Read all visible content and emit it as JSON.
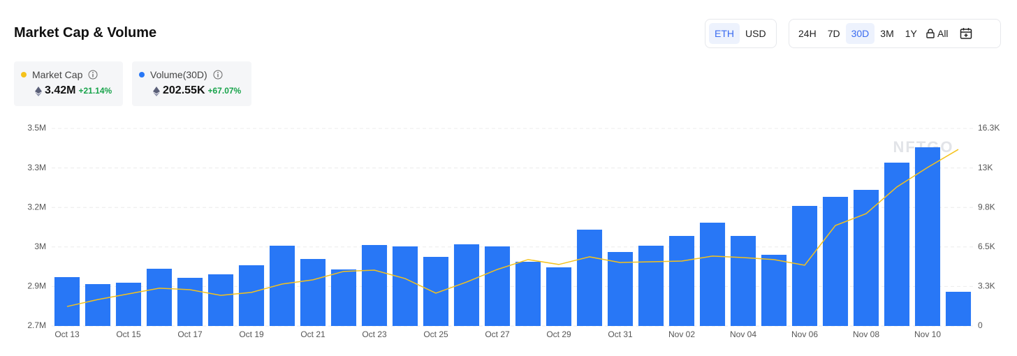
{
  "title": "Market Cap & Volume",
  "currency_options": [
    "ETH",
    "USD"
  ],
  "range_options": [
    "24H",
    "7D",
    "30D",
    "3M",
    "1Y",
    "All"
  ],
  "summary": [
    {
      "value": "3.42M",
      "change": "+21.14%"
    },
    {
      "value": "202.55K",
      "change": "+67.07%"
    }
  ],
  "watermark": "NFTGO",
  "chart_data": {
    "type": "combo",
    "categories": [
      "Oct 13",
      null,
      "Oct 15",
      null,
      "Oct 17",
      null,
      "Oct 19",
      null,
      "Oct 21",
      null,
      "Oct 23",
      null,
      "Oct 25",
      null,
      "Oct 27",
      null,
      "Oct 29",
      null,
      "Oct 31",
      null,
      "Nov 02",
      null,
      "Nov 04",
      null,
      "Nov 06",
      null,
      "Nov 08",
      null,
      "Nov 10",
      null
    ],
    "series": [
      {
        "name": "Market Cap",
        "type": "line",
        "color": "#f5c21b",
        "axis": "y",
        "values": [
          2779000,
          2807000,
          2830000,
          2853000,
          2847000,
          2824000,
          2836000,
          2870000,
          2887000,
          2921000,
          2926000,
          2892000,
          2833000,
          2878000,
          2929000,
          2969000,
          2949000,
          2980000,
          2957000,
          2960000,
          2963000,
          2983000,
          2977000,
          2969000,
          2946000,
          3107000,
          3155000,
          3263000,
          3342000,
          3415000
        ]
      },
      {
        "name": "Volume(30D)",
        "type": "bar",
        "color": "#2877f6",
        "axis": "y2",
        "values": [
          4032,
          3456,
          3571,
          4723,
          3974,
          4262,
          5011,
          6624,
          5529,
          4665,
          6681,
          6566,
          5702,
          6739,
          6566,
          5299,
          4838,
          7948,
          6105,
          6624,
          7430,
          8524,
          7430,
          5875,
          9907,
          10655,
          11231,
          13478,
          14745,
          2822
        ]
      }
    ],
    "ylim": [
      2700000,
      3500000
    ],
    "yticks": [
      {
        "value": 2700000,
        "label": "2.7M"
      },
      {
        "value": 2860000,
        "label": "2.9M"
      },
      {
        "value": 3020000,
        "label": "3M"
      },
      {
        "value": 3180000,
        "label": "3.2M"
      },
      {
        "value": 3340000,
        "label": "3.3M"
      },
      {
        "value": 3500000,
        "label": "3.5M"
      }
    ],
    "y2lim": [
      0,
      16300
    ],
    "y2ticks": [
      0,
      {
        "value": 3260,
        "label": "3.3K"
      },
      {
        "value": 6520,
        "label": "6.5K"
      },
      {
        "value": 9780,
        "label": "9.8K"
      },
      {
        "value": 13040,
        "label": "13K"
      },
      {
        "value": 16300,
        "label": "16.3K"
      }
    ],
    "grid": true
  }
}
